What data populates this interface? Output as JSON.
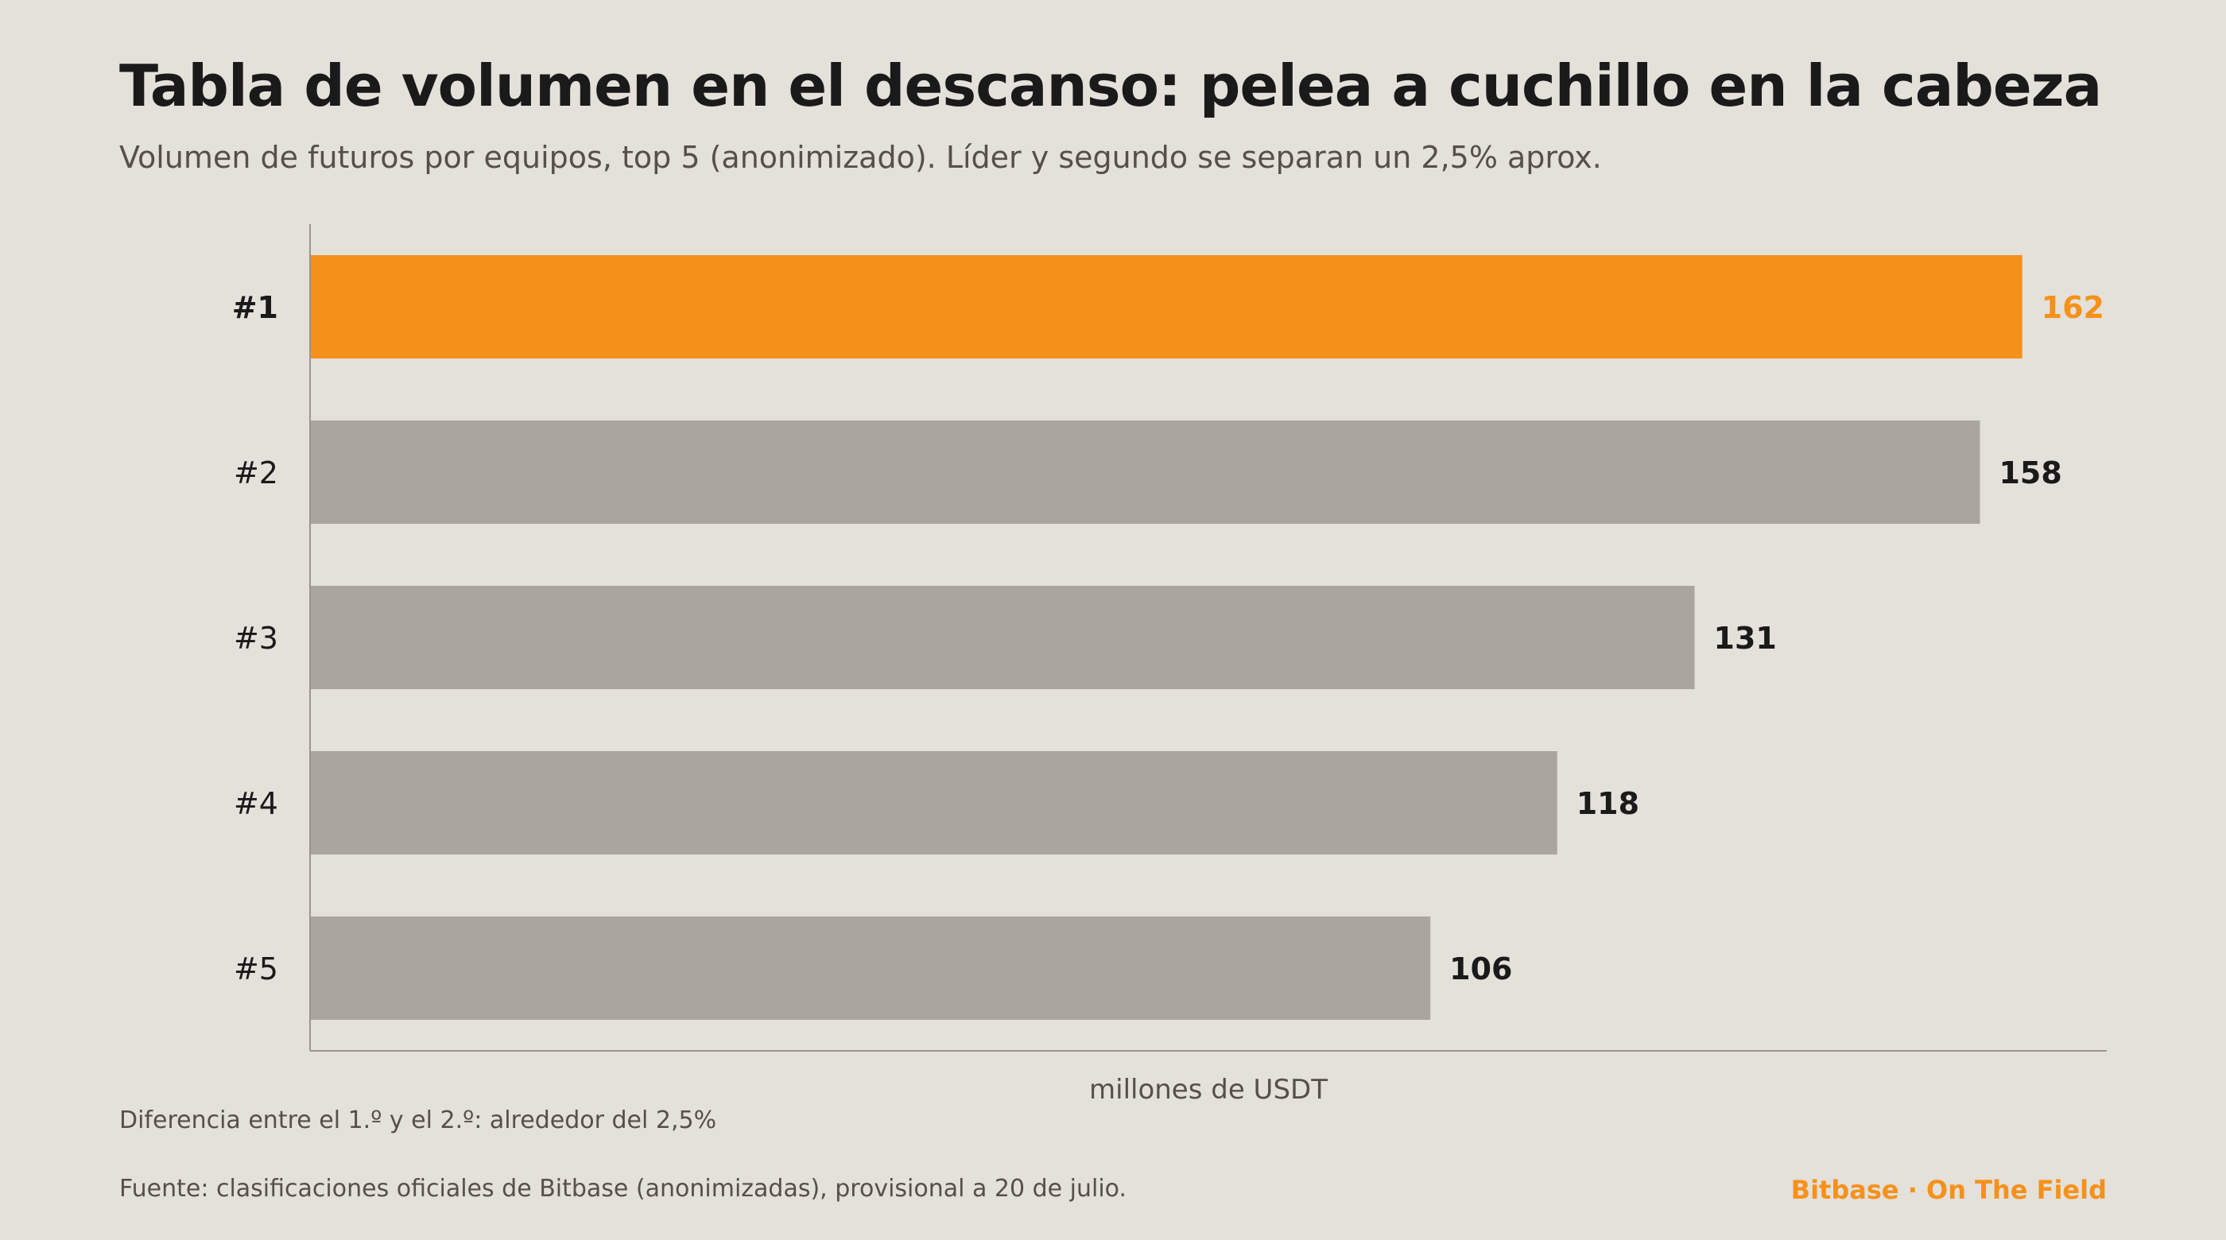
{
  "header": {
    "title": "Tabla de volumen en el descanso: pelea a cuchillo en la cabeza",
    "subtitle": "Volumen de futuros por equipos, top 5 (anonimizado). Líder y segundo se separan un 2,5% aprox."
  },
  "chart_data": {
    "type": "bar",
    "orientation": "horizontal",
    "categories": [
      "#1",
      "#2",
      "#3",
      "#4",
      "#5"
    ],
    "values": [
      162,
      158,
      131,
      118,
      106
    ],
    "xlabel": "millones de USDT",
    "ylabel": "",
    "xlim": [
      0,
      170
    ],
    "highlight_index": 0,
    "colors": {
      "highlight": "#f5911a",
      "default": "#aaa59e",
      "axis": "#9a958e",
      "label": "#1a1a1a"
    }
  },
  "footer": {
    "note": "Diferencia entre el 1.º y el 2.º: alrededor del 2,5%",
    "source": "Fuente: clasificaciones oficiales de Bitbase (anonimizadas), provisional a 20 de julio.",
    "brand": "Bitbase · On The Field"
  }
}
